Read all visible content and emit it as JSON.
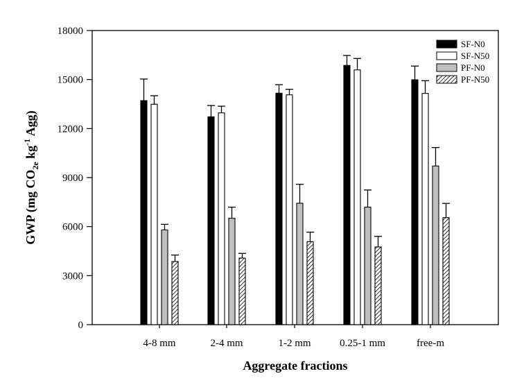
{
  "chart_data": {
    "type": "bar",
    "title": "",
    "xlabel": "Aggregate fractions",
    "ylabel": {
      "main": "GWP (mg CO",
      "sub": "2e",
      "mid": " kg",
      "sup": "-1",
      "end": " Agg)"
    },
    "ylim": [
      0,
      18000
    ],
    "yticks": [
      0,
      3000,
      6000,
      9000,
      12000,
      15000,
      18000
    ],
    "categories": [
      "4-8 mm",
      "2-4 mm",
      "1-2 mm",
      "0.25-1 mm",
      "free-m"
    ],
    "series": [
      {
        "name": "SF-N0",
        "fill": "#000000",
        "values": [
          13710,
          12720,
          14165,
          15865,
          14985
        ],
        "errors": [
          1320,
          690,
          520,
          610,
          840
        ]
      },
      {
        "name": "SF-N50",
        "fill": "#ffffff",
        "values": [
          13490,
          12960,
          14065,
          15590,
          14150
        ],
        "errors": [
          520,
          410,
          340,
          700,
          780
        ]
      },
      {
        "name": "PF-N0",
        "fill": "#bfbfbf",
        "values": [
          5800,
          6510,
          7430,
          7190,
          9710
        ],
        "errors": [
          340,
          680,
          1160,
          1050,
          1130
        ]
      },
      {
        "name": "PF-N50",
        "fill": "hatch",
        "values": [
          3865,
          4075,
          5080,
          4755,
          6550
        ],
        "errors": [
          395,
          285,
          580,
          650,
          870
        ]
      }
    ],
    "legend": "top-right",
    "grid": false
  }
}
